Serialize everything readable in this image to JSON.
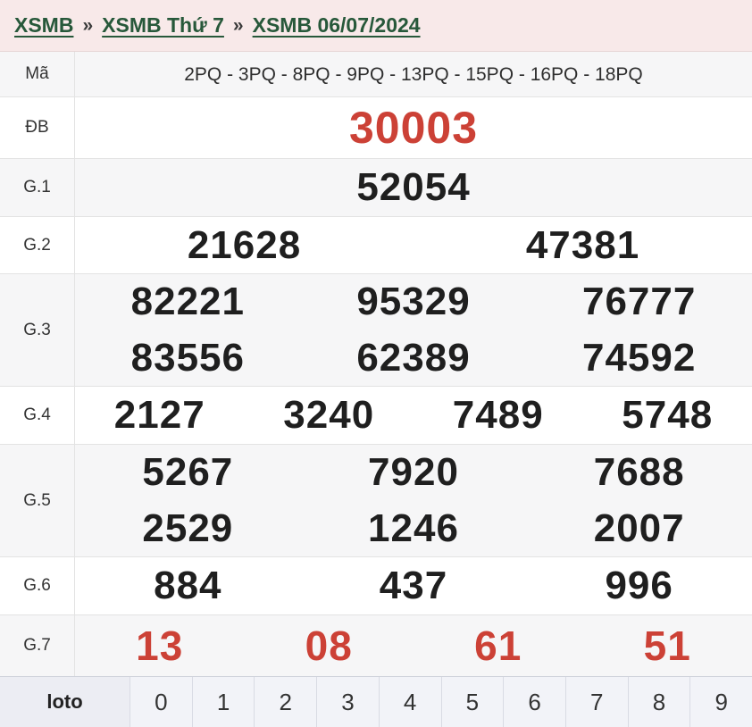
{
  "breadcrumb": {
    "separator": "»",
    "items": [
      {
        "label": "XSMB"
      },
      {
        "label": "XSMB Thứ 7"
      },
      {
        "label": "XSMB 06/07/2024"
      }
    ]
  },
  "table": {
    "rows": [
      {
        "label": "Mã",
        "type": "code",
        "cols": 1,
        "values": [
          "2PQ - 3PQ - 8PQ - 9PQ - 13PQ - 15PQ - 16PQ - 18PQ"
        ]
      },
      {
        "label": "ĐB",
        "type": "special",
        "cols": 1,
        "values": [
          "30003"
        ]
      },
      {
        "label": "G.1",
        "type": "prize",
        "cols": 1,
        "values": [
          "52054"
        ]
      },
      {
        "label": "G.2",
        "type": "prize",
        "cols": 2,
        "values": [
          "21628",
          "47381"
        ]
      },
      {
        "label": "G.3",
        "type": "prize",
        "cols": 3,
        "values": [
          "82221",
          "95329",
          "76777",
          "83556",
          "62389",
          "74592"
        ]
      },
      {
        "label": "G.4",
        "type": "prize",
        "cols": 4,
        "values": [
          "2127",
          "3240",
          "7489",
          "5748"
        ]
      },
      {
        "label": "G.5",
        "type": "prize",
        "cols": 3,
        "values": [
          "5267",
          "7920",
          "7688",
          "2529",
          "1246",
          "2007"
        ]
      },
      {
        "label": "G.6",
        "type": "prize",
        "cols": 3,
        "values": [
          "884",
          "437",
          "996"
        ]
      },
      {
        "label": "G.7",
        "type": "red",
        "cols": 4,
        "values": [
          "13",
          "08",
          "61",
          "51"
        ]
      }
    ]
  },
  "loto": {
    "label": "loto",
    "digits": [
      "0",
      "1",
      "2",
      "3",
      "4",
      "5",
      "6",
      "7",
      "8",
      "9"
    ]
  },
  "colors": {
    "header_pink": "#f8e9e9",
    "link_green": "#27583a",
    "prize_red": "#cc4136",
    "row_alt_gray": "#f6f6f7",
    "border_gray": "#e3e3e3"
  }
}
